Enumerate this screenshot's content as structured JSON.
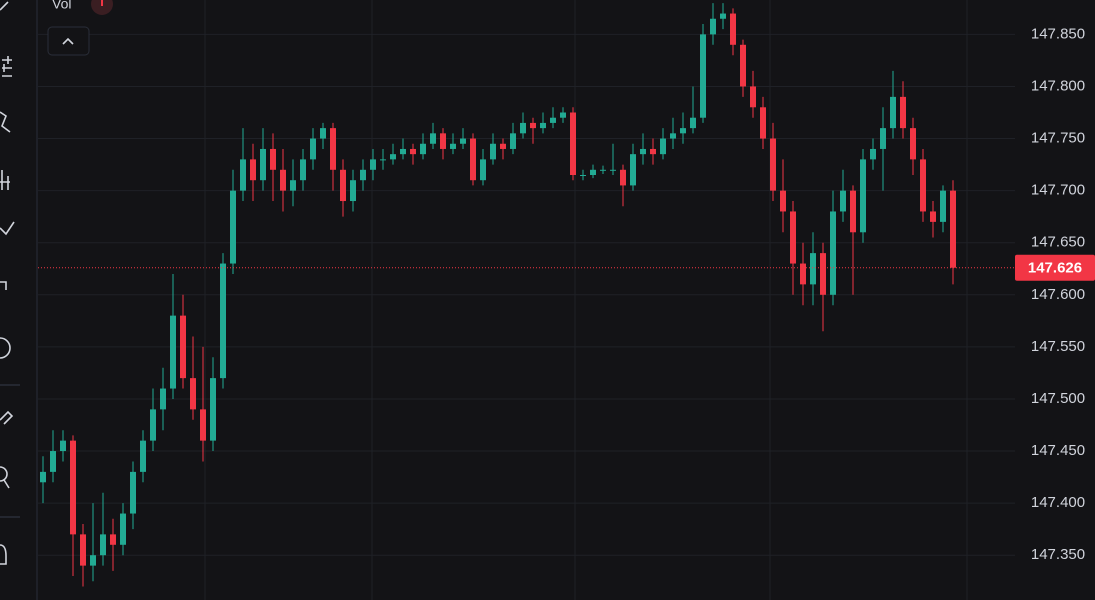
{
  "chart_data": {
    "type": "candlestick",
    "indicator_label": "Vol",
    "up_color": "#22ab94",
    "down_color": "#f23645",
    "ylim": [
      147.307,
      147.883
    ],
    "yticks": [
      {
        "value": 147.35,
        "label": "147.350"
      },
      {
        "value": 147.4,
        "label": "147.400"
      },
      {
        "value": 147.45,
        "label": "147.450"
      },
      {
        "value": 147.5,
        "label": "147.500"
      },
      {
        "value": 147.55,
        "label": "147.550"
      },
      {
        "value": 147.6,
        "label": "147.600"
      },
      {
        "value": 147.65,
        "label": "147.650"
      },
      {
        "value": 147.7,
        "label": "147.700"
      },
      {
        "value": 147.75,
        "label": "147.750"
      },
      {
        "value": 147.8,
        "label": "147.800"
      },
      {
        "value": 147.85,
        "label": "147.850"
      }
    ],
    "grid": true,
    "open": [
      147.42,
      147.43,
      147.45,
      147.46,
      147.37,
      147.34,
      147.35,
      147.37,
      147.36,
      147.39,
      147.43,
      147.46,
      147.49,
      147.51,
      147.58,
      147.52,
      147.49,
      147.46,
      147.52,
      147.63,
      147.7,
      147.73,
      147.71,
      147.74,
      147.72,
      147.7,
      147.71,
      147.73,
      147.75,
      147.76,
      147.72,
      147.69,
      147.71,
      147.72,
      147.73,
      147.73,
      147.735,
      147.74,
      147.735,
      147.745,
      147.755,
      147.74,
      147.745,
      147.75,
      147.71,
      147.73,
      147.745,
      147.74,
      147.755,
      147.765,
      147.76,
      147.765,
      147.77,
      147.775,
      147.715,
      147.715,
      147.72,
      147.72,
      147.72,
      147.705,
      147.735,
      147.74,
      147.735,
      147.75,
      147.755,
      147.76,
      147.77,
      147.85,
      147.865,
      147.87,
      147.84,
      147.8,
      147.78,
      147.75,
      147.7,
      147.68,
      147.63,
      147.61,
      147.64,
      147.6,
      147.68,
      147.7,
      147.66,
      147.73,
      147.74,
      147.76,
      147.79,
      147.76,
      147.73,
      147.68,
      147.67,
      147.7
    ],
    "high": [
      147.445,
      147.47,
      147.47,
      147.465,
      147.38,
      147.4,
      147.41,
      147.385,
      147.4,
      147.44,
      147.47,
      147.51,
      147.53,
      147.62,
      147.6,
      147.56,
      147.55,
      147.54,
      147.64,
      147.72,
      147.76,
      147.745,
      147.76,
      147.755,
      147.74,
      147.73,
      147.74,
      147.76,
      147.765,
      147.765,
      147.73,
      147.72,
      147.73,
      147.74,
      147.74,
      147.745,
      147.75,
      147.745,
      147.755,
      147.765,
      147.76,
      147.755,
      147.76,
      147.755,
      147.74,
      147.755,
      147.75,
      147.765,
      147.775,
      147.77,
      147.775,
      147.78,
      147.78,
      147.78,
      147.72,
      147.725,
      147.724,
      147.745,
      147.725,
      147.745,
      147.755,
      147.75,
      147.76,
      147.77,
      147.775,
      147.8,
      147.86,
      147.88,
      147.88,
      147.875,
      147.845,
      147.815,
      147.79,
      147.765,
      147.73,
      147.69,
      147.65,
      147.66,
      147.65,
      147.7,
      147.72,
      147.705,
      147.74,
      147.75,
      147.78,
      147.815,
      147.805,
      147.77,
      147.74,
      147.69,
      147.705,
      147.71
    ],
    "low": [
      147.4,
      147.42,
      147.44,
      147.33,
      147.32,
      147.325,
      147.34,
      147.335,
      147.35,
      147.375,
      147.42,
      147.45,
      147.47,
      147.5,
      147.51,
      147.48,
      147.44,
      147.45,
      147.51,
      147.62,
      147.69,
      147.69,
      147.7,
      147.69,
      147.68,
      147.685,
      147.7,
      147.72,
      147.74,
      147.7,
      147.675,
      147.68,
      147.7,
      147.71,
      147.72,
      147.725,
      147.73,
      147.725,
      147.73,
      147.74,
      147.73,
      147.735,
      147.74,
      147.705,
      147.705,
      147.725,
      147.73,
      147.735,
      147.75,
      147.745,
      147.755,
      147.76,
      147.765,
      147.71,
      147.71,
      147.712,
      147.716,
      147.715,
      147.685,
      147.7,
      147.725,
      147.725,
      147.73,
      147.74,
      147.745,
      147.755,
      147.765,
      147.84,
      147.855,
      147.83,
      147.79,
      147.77,
      147.74,
      147.69,
      147.66,
      147.6,
      147.59,
      147.59,
      147.565,
      147.59,
      147.67,
      147.6,
      147.65,
      147.72,
      147.7,
      147.75,
      147.75,
      147.715,
      147.67,
      147.655,
      147.66,
      147.61
    ],
    "close": [
      147.43,
      147.45,
      147.46,
      147.37,
      147.34,
      147.35,
      147.37,
      147.36,
      147.39,
      147.43,
      147.46,
      147.49,
      147.51,
      147.58,
      147.52,
      147.49,
      147.46,
      147.52,
      147.63,
      147.7,
      147.73,
      147.71,
      147.74,
      147.72,
      147.7,
      147.71,
      147.73,
      147.75,
      147.76,
      147.72,
      147.69,
      147.71,
      147.72,
      147.73,
      147.73,
      147.735,
      147.74,
      147.735,
      147.745,
      147.755,
      147.74,
      147.745,
      147.75,
      147.71,
      147.73,
      147.745,
      147.74,
      147.755,
      147.765,
      147.76,
      147.765,
      147.77,
      147.775,
      147.715,
      147.715,
      147.72,
      147.72,
      147.72,
      147.705,
      147.735,
      147.74,
      147.735,
      147.75,
      147.755,
      147.76,
      147.77,
      147.85,
      147.865,
      147.87,
      147.84,
      147.8,
      147.78,
      147.75,
      147.7,
      147.68,
      147.63,
      147.61,
      147.64,
      147.6,
      147.68,
      147.7,
      147.66,
      147.73,
      147.74,
      147.76,
      147.79,
      147.76,
      147.73,
      147.68,
      147.67,
      147.7,
      147.626
    ]
  }
}
